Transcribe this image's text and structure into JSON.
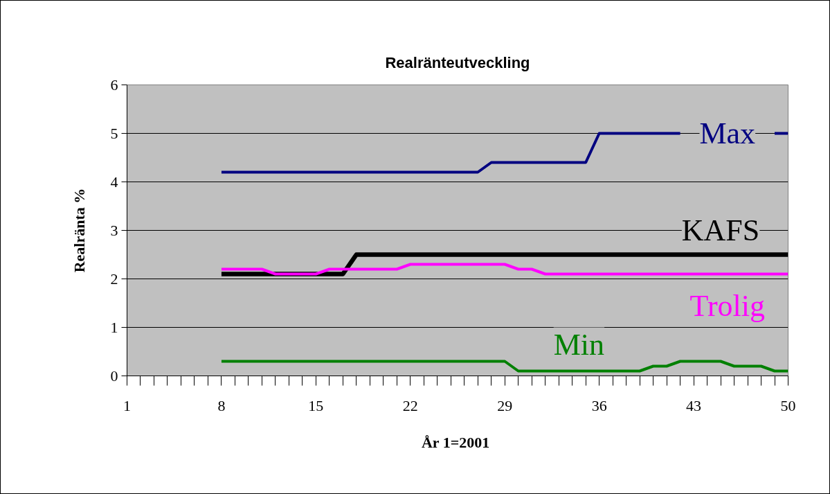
{
  "chart_data": {
    "type": "line",
    "title": "Realränteutveckling",
    "xlabel": "År  1=2001",
    "ylabel": "Realränta %",
    "x": [
      8,
      9,
      10,
      11,
      12,
      13,
      14,
      15,
      16,
      17,
      18,
      19,
      20,
      21,
      22,
      23,
      24,
      25,
      26,
      27,
      28,
      29,
      30,
      31,
      32,
      33,
      34,
      35,
      36,
      37,
      38,
      39,
      40,
      41,
      42,
      43,
      44,
      45,
      46,
      47,
      48,
      49,
      50
    ],
    "series": [
      {
        "name": "Max",
        "color": "#000080",
        "values": [
          4.2,
          4.2,
          4.2,
          4.2,
          4.2,
          4.2,
          4.2,
          4.2,
          4.2,
          4.2,
          4.2,
          4.2,
          4.2,
          4.2,
          4.2,
          4.2,
          4.2,
          4.2,
          4.2,
          4.2,
          4.4,
          4.4,
          4.4,
          4.4,
          4.4,
          4.4,
          4.4,
          4.4,
          5,
          5,
          5,
          5,
          5,
          5,
          5,
          null,
          null,
          null,
          null,
          null,
          null,
          5,
          5
        ]
      },
      {
        "name": "KAFS",
        "color": "#000000",
        "values": [
          2.1,
          2.1,
          2.1,
          2.1,
          2.1,
          2.1,
          2.1,
          2.1,
          2.1,
          2.1,
          2.5,
          2.5,
          2.5,
          2.5,
          2.5,
          2.5,
          2.5,
          2.5,
          2.5,
          2.5,
          2.5,
          2.5,
          2.5,
          2.5,
          2.5,
          2.5,
          2.5,
          2.5,
          2.5,
          2.5,
          2.5,
          2.5,
          2.5,
          2.5,
          2.5,
          2.5,
          2.5,
          2.5,
          2.5,
          2.5,
          2.5,
          2.5,
          2.5
        ]
      },
      {
        "name": "Trolig",
        "color": "#ff00ff",
        "values": [
          2.2,
          2.2,
          2.2,
          2.2,
          2.1,
          2.1,
          2.1,
          2.1,
          2.2,
          2.2,
          2.2,
          2.2,
          2.2,
          2.2,
          2.3,
          2.3,
          2.3,
          2.3,
          2.3,
          2.3,
          2.3,
          2.3,
          2.2,
          2.2,
          2.1,
          2.1,
          2.1,
          2.1,
          2.1,
          2.1,
          2.1,
          2.1,
          2.1,
          2.1,
          2.1,
          2.1,
          2.1,
          2.1,
          2.1,
          2.1,
          2.1,
          2.1,
          2.1
        ]
      },
      {
        "name": "Min",
        "color": "#008000",
        "values": [
          0.3,
          0.3,
          0.3,
          0.3,
          0.3,
          0.3,
          0.3,
          0.3,
          0.3,
          0.3,
          0.3,
          0.3,
          0.3,
          0.3,
          0.3,
          0.3,
          0.3,
          0.3,
          0.3,
          0.3,
          0.3,
          0.3,
          0.1,
          0.1,
          0.1,
          0.1,
          0.1,
          0.1,
          0.1,
          0.1,
          0.1,
          0.1,
          0.2,
          0.2,
          0.3,
          0.3,
          0.3,
          0.3,
          0.2,
          0.2,
          0.2,
          0.1,
          0.1
        ]
      }
    ],
    "xlim": [
      1,
      50
    ],
    "xticks": [
      1,
      {
        "value": 2,
        "label": null
      },
      {
        "value": 3,
        "label": null
      },
      {
        "value": 4,
        "label": null
      },
      {
        "value": 5,
        "label": null
      },
      {
        "value": 6,
        "label": null
      },
      {
        "value": 7,
        "label": null
      },
      8,
      {
        "value": 9,
        "label": null
      },
      {
        "value": 10,
        "label": null
      },
      {
        "value": 11,
        "label": null
      },
      {
        "value": 12,
        "label": null
      },
      {
        "value": 13,
        "label": null
      },
      {
        "value": 14,
        "label": null
      },
      15,
      {
        "value": 16,
        "label": null
      },
      {
        "value": 17,
        "label": null
      },
      {
        "value": 18,
        "label": null
      },
      {
        "value": 19,
        "label": null
      },
      {
        "value": 20,
        "label": null
      },
      {
        "value": 21,
        "label": null
      },
      22,
      {
        "value": 23,
        "label": null
      },
      {
        "value": 24,
        "label": null
      },
      {
        "value": 25,
        "label": null
      },
      {
        "value": 26,
        "label": null
      },
      {
        "value": 27,
        "label": null
      },
      {
        "value": 28,
        "label": null
      },
      29,
      {
        "value": 30,
        "label": null
      },
      {
        "value": 31,
        "label": null
      },
      {
        "value": 32,
        "label": null
      },
      {
        "value": 33,
        "label": null
      },
      {
        "value": 34,
        "label": null
      },
      {
        "value": 35,
        "label": null
      },
      36,
      {
        "value": 37,
        "label": null
      },
      {
        "value": 38,
        "label": null
      },
      {
        "value": 39,
        "label": null
      },
      {
        "value": 40,
        "label": null
      },
      {
        "value": 41,
        "label": null
      },
      {
        "value": 42,
        "label": null
      },
      43,
      {
        "value": 44,
        "label": null
      },
      {
        "value": 45,
        "label": null
      },
      {
        "value": 46,
        "label": null
      },
      {
        "value": 47,
        "label": null
      },
      {
        "value": 48,
        "label": null
      },
      {
        "value": 49,
        "label": null
      },
      50
    ],
    "ylim": [
      0,
      6
    ],
    "yticks": [
      0,
      1,
      2,
      3,
      4,
      5,
      6
    ],
    "grid": "y",
    "marker": "none",
    "line_style": "solid"
  }
}
